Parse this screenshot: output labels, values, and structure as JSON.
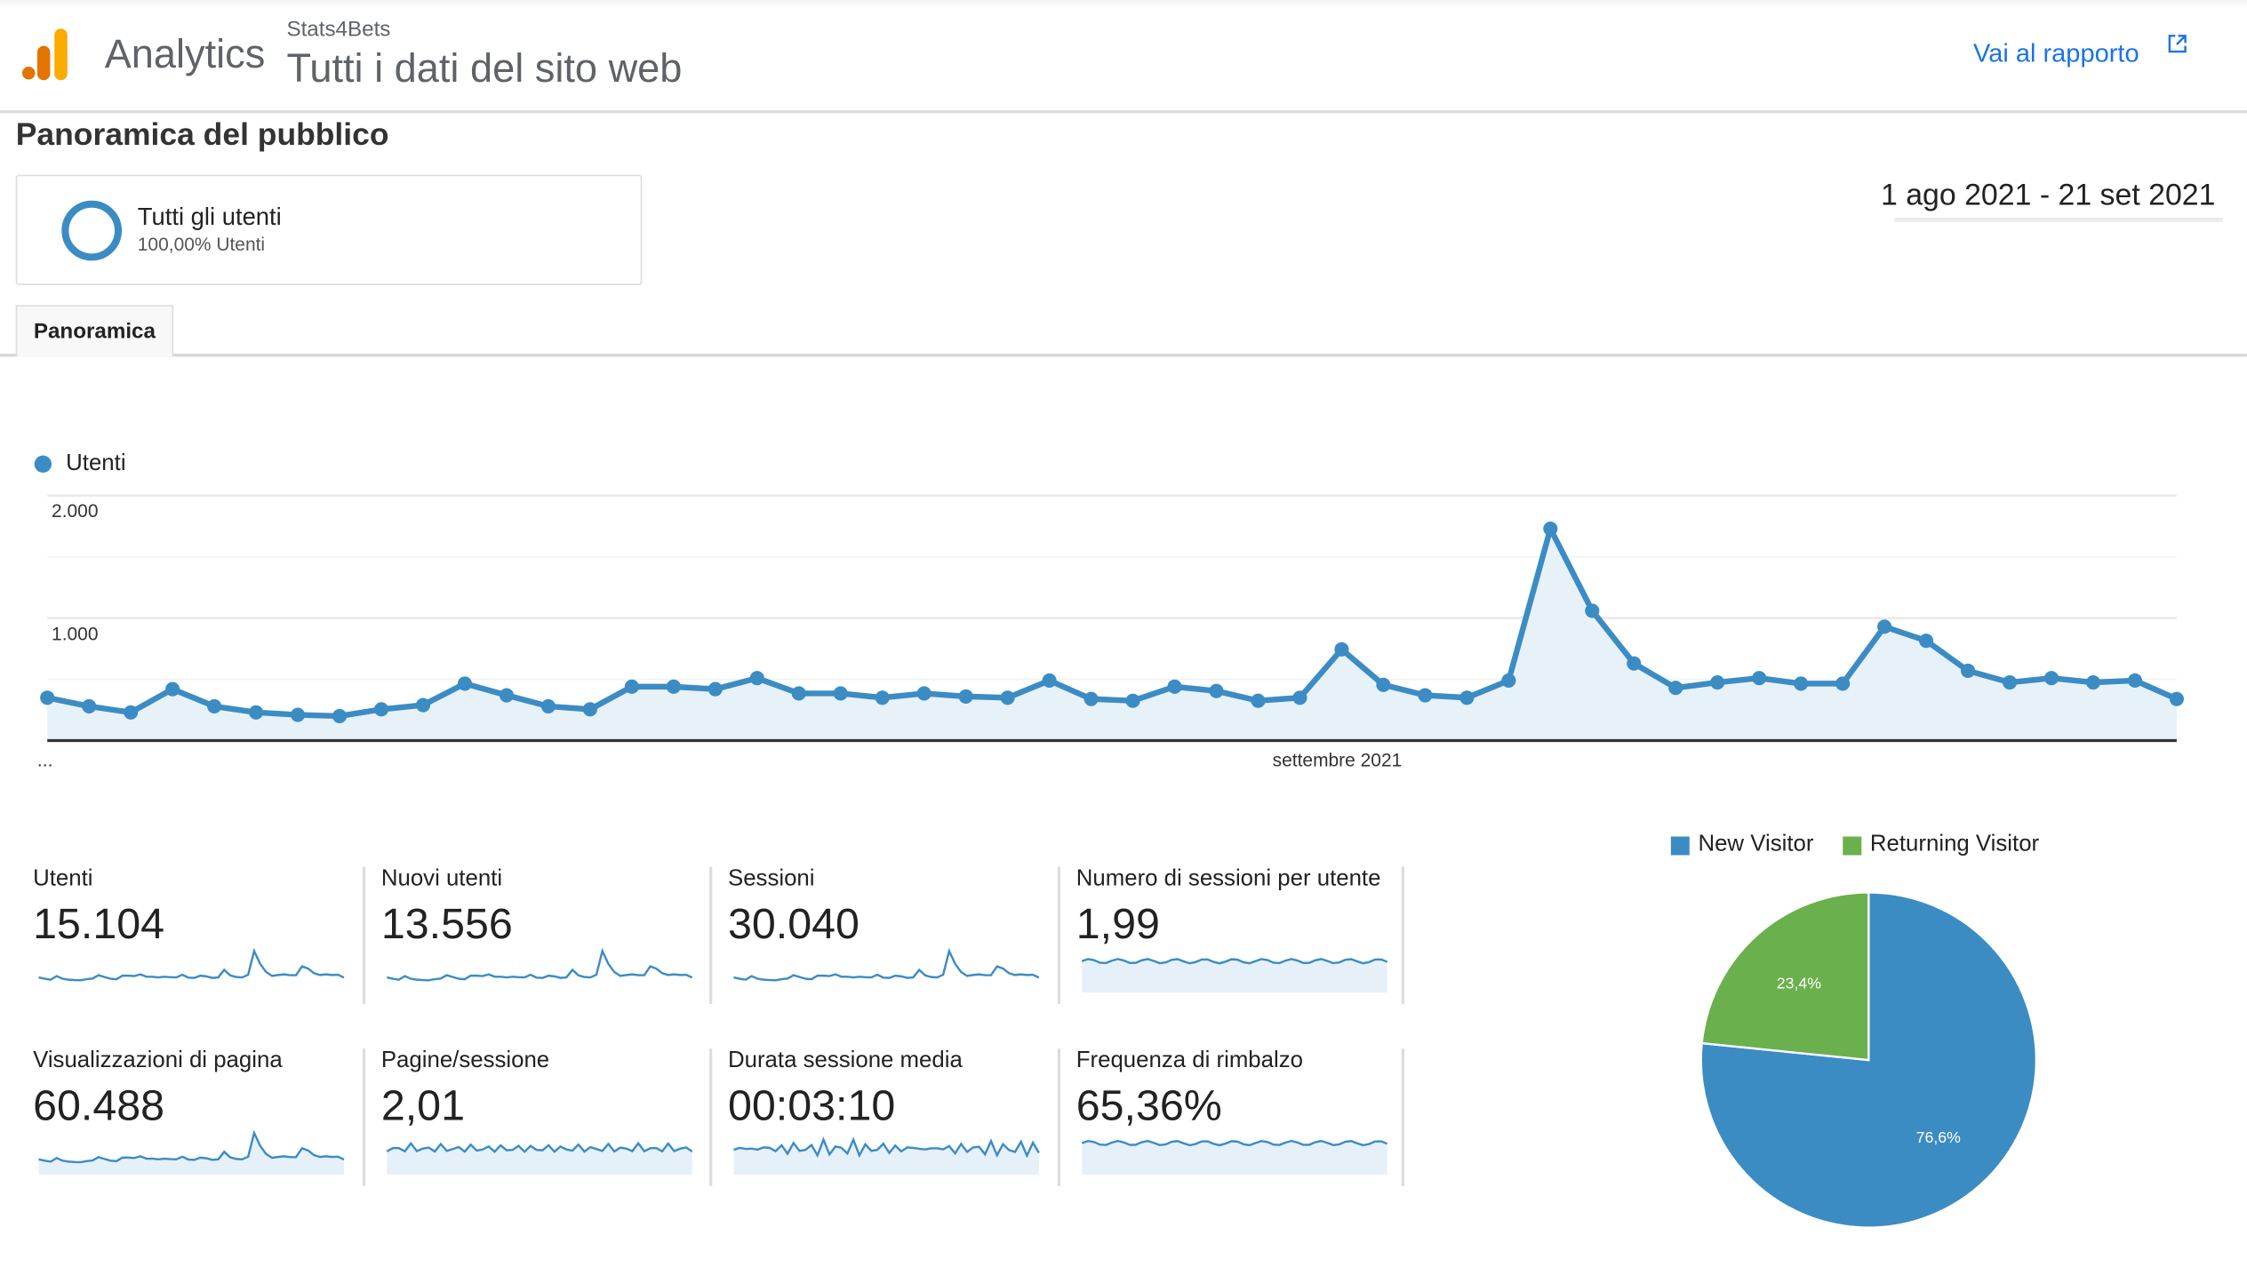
{
  "header": {
    "product": "Analytics",
    "account": "Stats4Bets",
    "view": "Tutti i dati del sito web",
    "report_link": "Vai al rapporto",
    "logo_colors": [
      "#e37400",
      "#f9ab00"
    ]
  },
  "page_title": "Panoramica del pubblico",
  "segment": {
    "name": "Tutti gli utenti",
    "detail": "100,00% Utenti"
  },
  "date_range": "1 ago 2021 - 21 set 2021",
  "tabs": [
    {
      "label": "Panoramica",
      "active": true
    }
  ],
  "colors": {
    "primary": "#3c8cc4",
    "secondary": "#6ab04c",
    "link": "#1a73e8"
  },
  "chart_data": [
    {
      "type": "area",
      "series": [
        {
          "name": "Utenti",
          "values": [
            350,
            280,
            230,
            420,
            280,
            230,
            210,
            200,
            255,
            290,
            465,
            370,
            280,
            255,
            440,
            440,
            420,
            510,
            385,
            385,
            350,
            385,
            360,
            350,
            490,
            340,
            325,
            440,
            405,
            325,
            350,
            745,
            455,
            370,
            350,
            490,
            1730,
            1060,
            630,
            430,
            475,
            510,
            465,
            465,
            930,
            815,
            570,
            475,
            510,
            475,
            490,
            340
          ]
        }
      ],
      "x_range": [
        "1 ago 2021",
        "21 set 2021"
      ],
      "x_tick_labels": [
        "...",
        "settembre 2021"
      ],
      "y_tick_labels": [
        "2.000",
        "1.000"
      ],
      "ylim": [
        0,
        2000
      ],
      "grid": true,
      "legend": "top-left"
    },
    {
      "type": "pie",
      "categories": [
        "New Visitor",
        "Returning Visitor"
      ],
      "values": [
        76.6,
        23.4
      ],
      "labels": [
        "76,6%",
        "23,4%"
      ],
      "legend": "top"
    }
  ],
  "metrics": [
    {
      "label": "Utenti",
      "value": "15.104"
    },
    {
      "label": "Nuovi utenti",
      "value": "13.556"
    },
    {
      "label": "Sessioni",
      "value": "30.040"
    },
    {
      "label": "Numero di sessioni per utente",
      "value": "1,99"
    },
    {
      "label": "Visualizzazioni di pagina",
      "value": "60.488"
    },
    {
      "label": "Pagine/sessione",
      "value": "2,01"
    },
    {
      "label": "Durata sessione media",
      "value": "00:03:10"
    },
    {
      "label": "Frequenza di rimbalzo",
      "value": "65,36%"
    }
  ]
}
